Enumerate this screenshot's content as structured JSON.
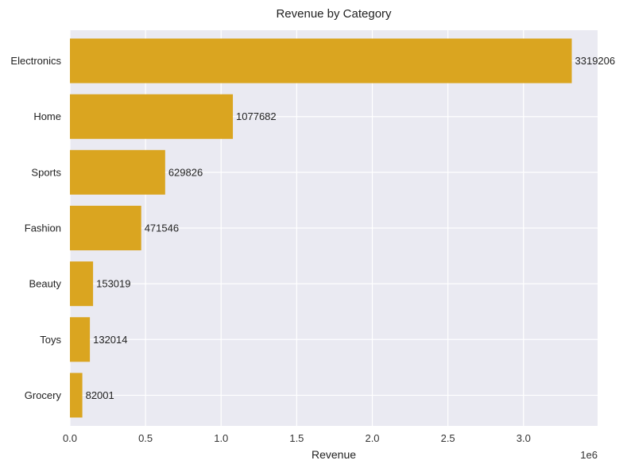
{
  "chart_data": {
    "type": "bar",
    "orientation": "horizontal",
    "title": "Revenue by Category",
    "xlabel": "Revenue",
    "ylabel": "",
    "x_scale_label": "1e6",
    "x_ticks": [
      "0.0",
      "0.5",
      "1.0",
      "1.5",
      "2.0",
      "2.5",
      "3.0"
    ],
    "x_tick_values": [
      0,
      500000,
      1000000,
      1500000,
      2000000,
      2500000,
      3000000
    ],
    "xlim": [
      0,
      3490000
    ],
    "categories": [
      "Electronics",
      "Home",
      "Sports",
      "Fashion",
      "Beauty",
      "Toys",
      "Grocery"
    ],
    "values": [
      3319206,
      1077682,
      629826,
      471546,
      153019,
      132014,
      82001
    ],
    "value_labels": [
      "3319206",
      "1077682",
      "629826",
      "471546",
      "153019",
      "132014",
      "82001"
    ],
    "grid": true,
    "colors": {
      "bar": "#daa520",
      "plot_background": "#eaeaf2",
      "grid": "#ffffff"
    }
  }
}
